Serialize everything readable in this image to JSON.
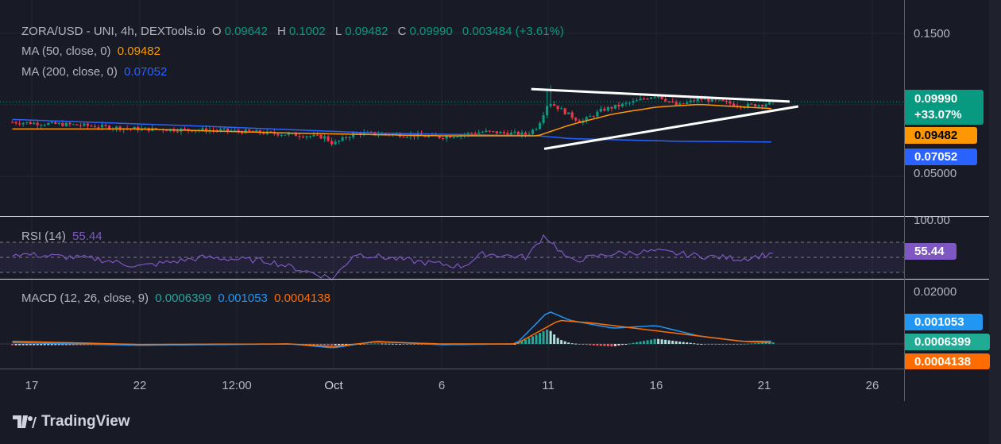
{
  "header": {
    "symbol": "ZORA/USD - UNI, 4h, DEXTools.io",
    "o_label": "O",
    "o": "0.09642",
    "h_label": "H",
    "h": "0.1002",
    "l_label": "L",
    "l": "0.09482",
    "c_label": "C",
    "c": "0.09990",
    "change": "0.003484 (+3.61%)"
  },
  "ma50": {
    "label": "MA (50, close, 0)",
    "value": "0.09482",
    "color": "#ff9800"
  },
  "ma200": {
    "label": "MA (200, close, 0)",
    "value": "0.07052",
    "color": "#2962ff"
  },
  "rsi": {
    "label": "RSI (14)",
    "value": "55.44",
    "color": "#7e57c2"
  },
  "macd": {
    "label": "MACD (12, 26, close, 9)",
    "hist": "0.0006399",
    "macd": "0.001053",
    "signal": "0.0004138"
  },
  "price_axis": {
    "ticks": [
      "0.1500",
      "0.05000"
    ],
    "last_price": "0.09990",
    "last_change": "+33.07%",
    "ma50_tag": "0.09482",
    "ma200_tag": "0.07052"
  },
  "rsi_axis": {
    "ticks": [
      "100.00"
    ],
    "tag": "55.44"
  },
  "macd_axis": {
    "ticks": [
      "0.02000"
    ],
    "macd_tag": "0.001053",
    "hist_tag": "0.0006399",
    "signal_tag": "0.0004138"
  },
  "time_axis": [
    "17",
    "22",
    "12:00",
    "Oct",
    "6",
    "11",
    "16",
    "21",
    "26"
  ],
  "brand": "TradingView",
  "chart_data": {
    "type": "candlestick",
    "title": "ZORA/USD - UNI, 4h",
    "x_unit": "days since Sep 17",
    "price_path": [
      [
        -0.9,
        0.085
      ],
      [
        2,
        0.083
      ],
      [
        5,
        0.08
      ],
      [
        9,
        0.079
      ],
      [
        12,
        0.076
      ],
      [
        13.6,
        0.074
      ],
      [
        14,
        0.069
      ],
      [
        15,
        0.077
      ],
      [
        17,
        0.076
      ],
      [
        19,
        0.074
      ],
      [
        21,
        0.078
      ],
      [
        23,
        0.076
      ],
      [
        23.5,
        0.082
      ],
      [
        24,
        0.1
      ],
      [
        25,
        0.09
      ],
      [
        25.5,
        0.085
      ],
      [
        26.5,
        0.094
      ],
      [
        28,
        0.1
      ],
      [
        29,
        0.105
      ],
      [
        30,
        0.097
      ],
      [
        31,
        0.102
      ],
      [
        32,
        0.1
      ],
      [
        33,
        0.097
      ],
      [
        34,
        0.098
      ],
      [
        34.5,
        0.0999
      ]
    ],
    "ma50_path": [
      [
        -0.9,
        0.08
      ],
      [
        5,
        0.08
      ],
      [
        12,
        0.077
      ],
      [
        19,
        0.075
      ],
      [
        23.5,
        0.075
      ],
      [
        25,
        0.083
      ],
      [
        27,
        0.091
      ],
      [
        29,
        0.096
      ],
      [
        31,
        0.098
      ],
      [
        34.5,
        0.0948
      ]
    ],
    "ma200_path": [
      [
        -0.9,
        0.087
      ],
      [
        8,
        0.082
      ],
      [
        16,
        0.077
      ],
      [
        23.5,
        0.075
      ],
      [
        25,
        0.073
      ],
      [
        30,
        0.071
      ],
      [
        34.5,
        0.0705
      ]
    ],
    "rsi_path": [
      [
        -0.9,
        55
      ],
      [
        3,
        48
      ],
      [
        5,
        38
      ],
      [
        8,
        50
      ],
      [
        11,
        45
      ],
      [
        14,
        22
      ],
      [
        15,
        55
      ],
      [
        18,
        44
      ],
      [
        20,
        38
      ],
      [
        21,
        55
      ],
      [
        23,
        50
      ],
      [
        23.8,
        80
      ],
      [
        25,
        45
      ],
      [
        27,
        55
      ],
      [
        29,
        58
      ],
      [
        31,
        52
      ],
      [
        33,
        48
      ],
      [
        34.5,
        55.44
      ]
    ],
    "macd_path": [
      [
        -0.9,
        0.0005
      ],
      [
        5,
        -0.0005
      ],
      [
        12,
        0
      ],
      [
        14,
        -0.0015
      ],
      [
        16,
        0.001
      ],
      [
        19,
        -0.0003
      ],
      [
        22.5,
        0
      ],
      [
        24,
        0.0125
      ],
      [
        25,
        0.009
      ],
      [
        27,
        0.006
      ],
      [
        29,
        0.007
      ],
      [
        31,
        0.003
      ],
      [
        33,
        0.001
      ],
      [
        34.5,
        0.001053
      ]
    ],
    "signal_path": [
      [
        -0.9,
        0.001
      ],
      [
        5,
        -0.0002
      ],
      [
        12,
        0
      ],
      [
        14,
        -0.001
      ],
      [
        16,
        0.0008
      ],
      [
        19,
        0
      ],
      [
        22.5,
        0
      ],
      [
        24.5,
        0.009
      ],
      [
        26,
        0.008
      ],
      [
        29,
        0.005
      ],
      [
        31,
        0.003
      ],
      [
        33,
        0.001
      ],
      [
        34.5,
        0.0004138
      ]
    ],
    "trendlines": [
      [
        [
          23.2,
          0.1092
        ],
        [
          35.2,
          0.1001
        ]
      ],
      [
        [
          23.8,
          0.0655
        ],
        [
          35.6,
          0.0965
        ]
      ]
    ],
    "ylim": [
      0.05,
      0.15
    ],
    "rsi_levels": [
      30,
      50,
      70
    ]
  }
}
